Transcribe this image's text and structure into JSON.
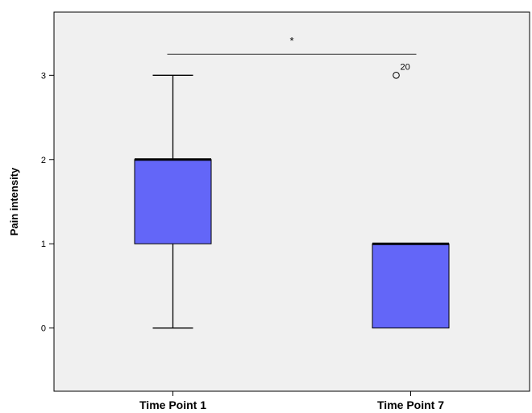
{
  "chart_data": {
    "type": "box",
    "title": "",
    "xlabel": "",
    "ylabel": "Pain intensity",
    "ylim": [
      -0.75,
      3.75
    ],
    "yticks": [
      "0",
      "1",
      "2",
      "3"
    ],
    "categories": [
      "Time Point 1",
      "Time Point 7"
    ],
    "boxes": [
      {
        "category": "Time Point 1",
        "min": 0,
        "q1": 1,
        "median": 2,
        "q3": 2,
        "max": 3,
        "outliers": []
      },
      {
        "category": "Time Point 7",
        "min": 0,
        "q1": 0,
        "median": 1,
        "q3": 1,
        "max": 1,
        "outliers": [
          {
            "value": 3,
            "label": "20"
          }
        ]
      }
    ],
    "significance": {
      "from": "Time Point 1",
      "to": "Time Point 7",
      "y": 3.25,
      "label": "*"
    },
    "colors": {
      "plot_bg": "#f0f0f0",
      "box_fill": "#6366f8",
      "line": "#000000"
    },
    "grid": false
  }
}
